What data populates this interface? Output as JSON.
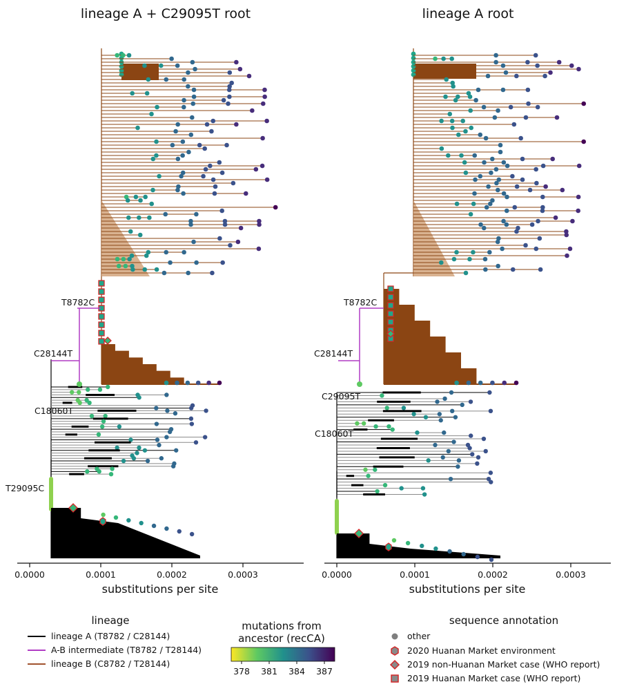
{
  "chart_data": [
    {
      "type": "phylogenetic-tree",
      "title": "lineage A + C29095T root",
      "xlabel": "substitutions per site",
      "xlim": [
        -1.5e-05,
        0.00038
      ],
      "xticks": [
        0.0,
        0.0001,
        0.0002,
        0.0003
      ],
      "xtick_labels": [
        "0.0000",
        "0.0001",
        "0.0002",
        "0.0003"
      ],
      "mutation_labels": [
        "T8782C",
        "C28144T",
        "C18060T",
        "T29095C"
      ],
      "clades": [
        {
          "lineage": "B",
          "span": [
            0.0001,
            0.00037
          ],
          "tips": 70
        },
        {
          "lineage": "A",
          "span": [
            3e-05,
            0.00025
          ],
          "tips": 40
        }
      ]
    },
    {
      "type": "phylogenetic-tree",
      "title": "lineage A root",
      "xlabel": "substitutions per site",
      "xlim": [
        -1.5e-05,
        0.00035
      ],
      "xticks": [
        0.0,
        0.0001,
        0.0002,
        0.0003
      ],
      "xtick_labels": [
        "0.0000",
        "0.0001",
        "0.0002",
        "0.0003"
      ],
      "mutation_labels": [
        "T8782C",
        "C28144T",
        "C29095T",
        "C18060T"
      ],
      "clades": [
        {
          "lineage": "B",
          "span": [
            6e-05,
            0.00034
          ],
          "tips": 70
        },
        {
          "lineage": "A",
          "span": [
            0.0,
            0.00021
          ],
          "tips": 40
        }
      ]
    }
  ],
  "colors": {
    "lineage_A": "#000000",
    "lineage_AB": "#b03bc4",
    "lineage_B": "#8b4513",
    "lineage_B_light": "#d2a47c",
    "lineage_A_light": "#8a8a8a",
    "annotation_border": "#d62728"
  },
  "legend": {
    "lineage": {
      "title": "lineage",
      "items": [
        {
          "label": "lineage A (T8782 / C28144)",
          "color": "#000000"
        },
        {
          "label": "A-B intermediate (T8782 / T28144)",
          "color": "#b03bc4"
        },
        {
          "label": "lineage B (C8782 / T28144)",
          "color": "#a0522d"
        }
      ]
    },
    "colorbar": {
      "title_line1": "mutations from",
      "title_line2": "ancestor (recCA)",
      "ticks": [
        "378",
        "381",
        "384",
        "387"
      ]
    },
    "annotation": {
      "title": "sequence annotation",
      "items": [
        {
          "label": "other",
          "marker": "circle"
        },
        {
          "label": "2020 Huanan Market environment",
          "marker": "hexagon"
        },
        {
          "label": "2019 non-Huanan Market case (WHO report)",
          "marker": "diamond"
        },
        {
          "label": "2019 Huanan Market case (WHO report)",
          "marker": "square"
        }
      ]
    }
  }
}
